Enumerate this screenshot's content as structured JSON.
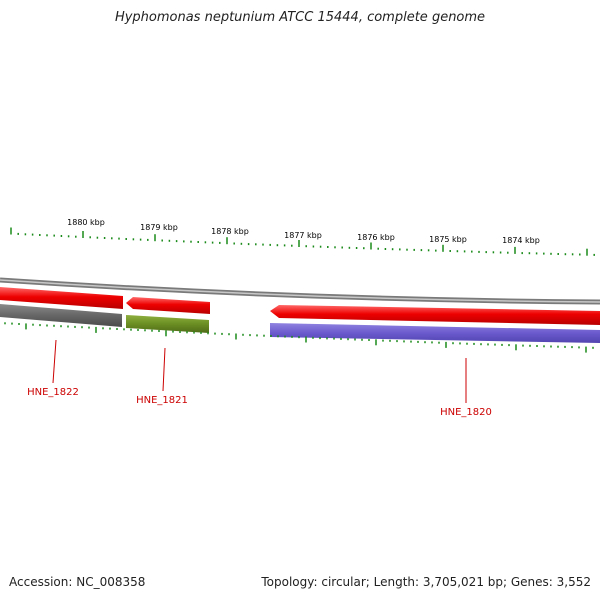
{
  "title": "Hyphomonas neptunium ATCC 15444, complete genome",
  "footer": {
    "accession": "Accession: NC_008358",
    "summary": "Topology: circular; Length: 3,705,021 bp; Genes: 3,552"
  },
  "scale": {
    "labels": [
      "1880 kbp",
      "1879 kbp",
      "1878 kbp",
      "1877 kbp",
      "1876 kbp",
      "1875 kbp",
      "1874 kbp"
    ]
  },
  "genes": {
    "labels": [
      "HNE_1822",
      "HNE_1821",
      "HNE_1820"
    ]
  },
  "colors": {
    "ticks": "#1a8a1a",
    "backbone": "#888888",
    "cds": "#ee0000",
    "gene_grey": "#666666",
    "gene_green": "#6b8e23",
    "gene_purple": "#6a5acd",
    "label": "#cc0000"
  }
}
